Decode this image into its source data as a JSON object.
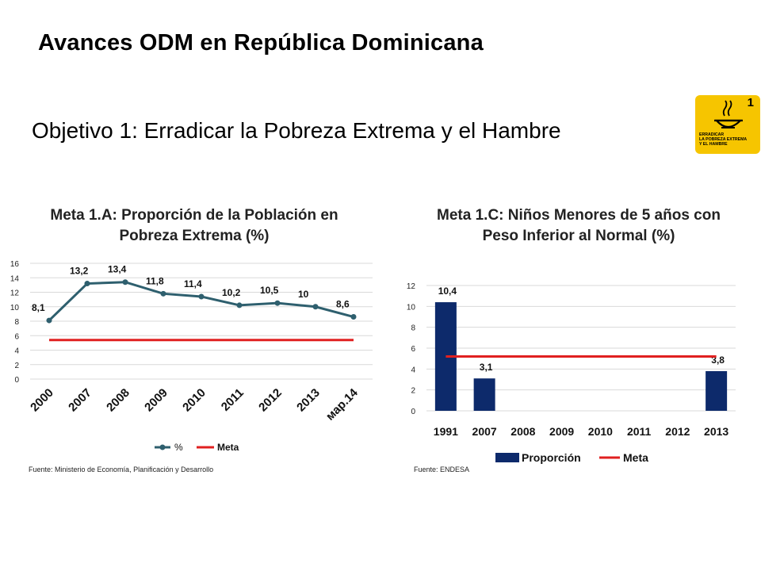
{
  "page": {
    "title": "Avances ODM en República Dominicana",
    "subtitle": "Objetivo 1: Erradicar la Pobreza Extrema y el Hambre",
    "logo": {
      "number": "1",
      "text_lines": [
        "ERRADICAR",
        "LA POBREZA EXTREMA",
        "Y EL HAMBRE"
      ],
      "color": "#f6c500"
    }
  },
  "chart_data": [
    {
      "type": "line",
      "title": "Meta 1.A: Proporción de la Población en Pobreza Extrema (%)",
      "categories": [
        "2000",
        "2007",
        "2008",
        "2009",
        "2010",
        "2011",
        "2012",
        "2013",
        "мар.14"
      ],
      "series": [
        {
          "name": "%",
          "values": [
            8.1,
            13.2,
            13.4,
            11.8,
            11.4,
            10.2,
            10.5,
            10,
            8.6
          ],
          "color": "#2e5f6e"
        },
        {
          "name": "Meta",
          "values": [
            5.4,
            5.4,
            5.4,
            5.4,
            5.4,
            5.4,
            5.4,
            5.4,
            5.4
          ],
          "color": "#e02020"
        }
      ],
      "data_labels": [
        "8,1",
        "13,2",
        "13,4",
        "11,8",
        "11,4",
        "10,2",
        "10,5",
        "10",
        "8,6"
      ],
      "y_ticks": [
        "0",
        "2",
        "4",
        "6",
        "8",
        "10",
        "12",
        "14",
        "16"
      ],
      "ylim": [
        0,
        16
      ],
      "grid": true,
      "legend": "bottom",
      "source": "Fuente: Ministerio de Economía, Planificación y Desarrollo"
    },
    {
      "type": "bar",
      "title": "Meta 1.C: Niños Menores de 5 años con Peso Inferior al Normal (%)",
      "categories": [
        "1991",
        "2007",
        "2008",
        "2009",
        "2010",
        "2011",
        "2012",
        "2013"
      ],
      "series": [
        {
          "name": "Proporción",
          "values": [
            10.4,
            3.1,
            null,
            null,
            null,
            null,
            null,
            3.8
          ],
          "color": "#0d2a6b"
        },
        {
          "name": "Meta",
          "values": [
            5.2,
            5.2,
            5.2,
            5.2,
            5.2,
            5.2,
            5.2,
            5.2
          ],
          "color": "#e02020"
        }
      ],
      "data_labels": [
        "10,4",
        "3,1",
        "",
        "",
        "",
        "",
        "",
        "3,8"
      ],
      "y_ticks": [
        "0",
        "2",
        "4",
        "6",
        "8",
        "10",
        "12"
      ],
      "ylim": [
        0,
        12
      ],
      "grid": true,
      "legend": "bottom",
      "source": "Fuente: ENDESA"
    }
  ]
}
